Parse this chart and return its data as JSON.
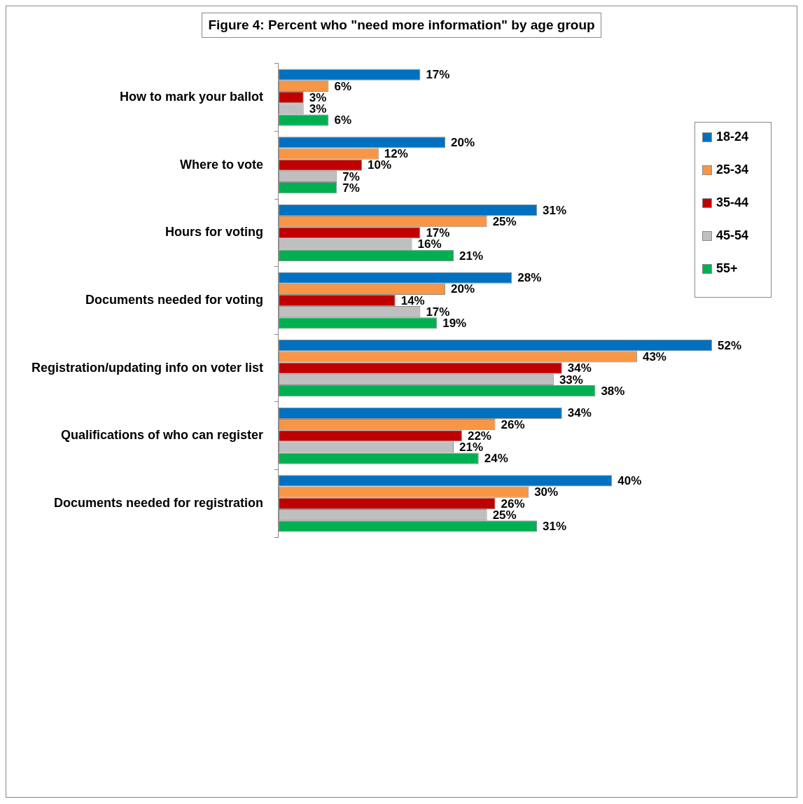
{
  "chart_data": {
    "type": "bar",
    "orientation": "horizontal",
    "title": "Figure 4: Percent who \"need more information\" by age group",
    "categories": [
      "How to mark your ballot",
      "Where to vote",
      "Hours for voting",
      "Documents needed for voting",
      "Registration/updating info on voter list",
      "Qualifications of who can register",
      "Documents needed for registration"
    ],
    "series": [
      {
        "name": "18-24",
        "color": "#0070c0",
        "values": [
          17,
          20,
          31,
          28,
          52,
          34,
          40
        ],
        "value_labels": [
          "17%",
          "20%",
          "31%",
          "28%",
          "52%",
          "34%",
          "40%"
        ]
      },
      {
        "name": "25-34",
        "color": "#f79646",
        "values": [
          6,
          12,
          25,
          20,
          43,
          26,
          30
        ],
        "value_labels": [
          "6%",
          "12%",
          "25%",
          "20%",
          "43%",
          "26%",
          "30%"
        ]
      },
      {
        "name": "35-44",
        "color": "#c00000",
        "values": [
          3,
          10,
          17,
          14,
          34,
          22,
          26
        ],
        "value_labels": [
          "3%",
          "10%",
          "17%",
          "14%",
          "34%",
          "22%",
          "26%"
        ]
      },
      {
        "name": "45-54",
        "color": "#bfbfbf",
        "values": [
          3,
          7,
          16,
          17,
          33,
          21,
          25
        ],
        "value_labels": [
          "3%",
          "7%",
          "16%",
          "17%",
          "33%",
          "21%",
          "25%"
        ]
      },
      {
        "name": "55+",
        "color": "#00b050",
        "values": [
          6,
          7,
          21,
          19,
          38,
          24,
          31
        ],
        "value_labels": [
          "6%",
          "7%",
          "21%",
          "19%",
          "38%",
          "24%",
          "31%"
        ]
      }
    ],
    "legend": "right",
    "grid": false,
    "tick_labels": "y"
  }
}
